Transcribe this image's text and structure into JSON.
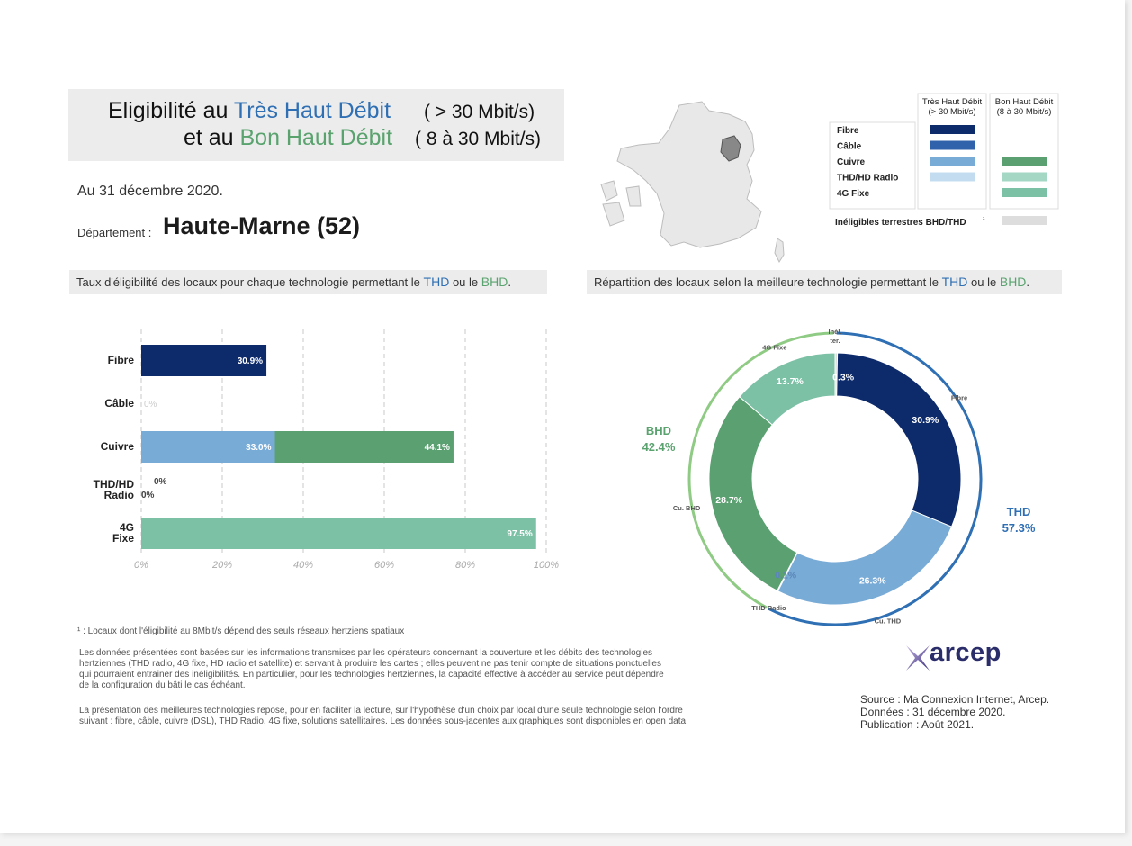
{
  "header": {
    "line1_prefix": "Eligibilité au",
    "line1_thd": "Très Haut Débit",
    "line1_range": "( > 30 Mbit/s)",
    "line2_prefix": "et au",
    "line2_bhd": "Bon Haut Débit",
    "line2_range": "( 8 à 30 Mbit/s)"
  },
  "date": "Au 31 décembre 2020.",
  "department": {
    "prefix": "Département :",
    "name": "Haute-Marne (52)"
  },
  "left_section": {
    "text": "Taux d'éligibilité des locaux pour chaque technologie permettant le",
    "thd": "THD",
    "middle": "ou le",
    "bhd": "BHD",
    "end": "."
  },
  "right_section": {
    "text": "Répartition des locaux selon la meilleure technologie permettant le",
    "thd": "THD",
    "middle": "ou le",
    "bhd": "BHD",
    "end": "."
  },
  "legend": {
    "col_thd": [
      "Très Haut Débit",
      "(> 30 Mbit/s)"
    ],
    "col_bhd": [
      "Bon Haut Débit",
      "(8 à 30 Mbit/s)"
    ],
    "rows": [
      {
        "label": "Fibre",
        "thd_color": "#0d2a6b",
        "bhd_color": null
      },
      {
        "label": "Câble",
        "thd_color": "#2f62aa",
        "bhd_color": null
      },
      {
        "label": "Cuivre",
        "thd_color": "#79abd7",
        "bhd_color": "#5aa070"
      },
      {
        "label": "THD/HD Radio",
        "thd_color": "#c4dcf0",
        "bhd_color": "#a5d7c5"
      },
      {
        "label": "4G Fixe",
        "thd_color": null,
        "bhd_color": "#7cc0a6"
      }
    ],
    "inelig_label": "Inéligibles terrestres BHD/THD",
    "inelig_sup": "¹",
    "inelig_color": "#dddddd"
  },
  "colors": {
    "fibre": "#0d2a6b",
    "cuivre_thd": "#79abd7",
    "cuivre_bhd": "#5aa070",
    "fixe4g": "#7cc0a6",
    "thd_ring": "#2f6fb4",
    "bhd_ring": "#8fcb84",
    "thd_text": "#2f6fb4",
    "bhd_text": "#5aa36f"
  },
  "chart_data": [
    {
      "type": "bar",
      "orientation": "horizontal",
      "stacked": true,
      "categories": [
        "Fibre",
        "Câble",
        "Cuivre",
        "THD/HD Radio",
        "4G Fixe"
      ],
      "series": [
        {
          "name": "THD",
          "values": [
            30.9,
            0,
            33.0,
            0,
            null
          ],
          "labels": [
            "30.9%",
            "0%",
            "33.0%",
            "0%",
            ""
          ]
        },
        {
          "name": "BHD",
          "values": [
            null,
            null,
            44.1,
            0,
            97.5
          ],
          "labels": [
            "",
            "",
            "44.1%",
            "0%",
            "97.5%"
          ]
        }
      ],
      "xlim": [
        0,
        100
      ],
      "xticks": [
        "0%",
        "20%",
        "40%",
        "60%",
        "80%",
        "100%"
      ],
      "grid": true
    },
    {
      "type": "pie",
      "donut": true,
      "slices": [
        {
          "label": "Inél. ter.",
          "value": 0.3,
          "text": "0.3%"
        },
        {
          "label": "Fibre",
          "value": 30.9,
          "text": "30.9%"
        },
        {
          "label": "Cu. THD",
          "value": 26.3,
          "text": "26.3%"
        },
        {
          "label": "THD Radio",
          "value": 0.1,
          "text": "0.1%"
        },
        {
          "label": "Cu. BHD",
          "value": 28.7,
          "text": "28.7%"
        },
        {
          "label": "4G Fixe",
          "value": 13.7,
          "text": "13.7%"
        }
      ],
      "groups": [
        {
          "name": "THD",
          "value": 57.3,
          "text": "57.3%"
        },
        {
          "name": "BHD",
          "value": 42.4,
          "text": "42.4%"
        }
      ]
    }
  ],
  "footnote": "¹ : Locaux dont l'éligibilité au 8Mbit/s dépend des seuls réseaux hertziens spatiaux",
  "note_1": [
    "Les données présentées sont basées sur les informations transmises par les opérateurs concernant la couverture et les débits des technologies",
    "hertziennes (THD radio, 4G fixe, HD radio et satellite) et servant à produire les cartes ; elles peuvent ne pas tenir compte de situations ponctuelles",
    "qui pourraient entrainer des inéligibilités. En particulier, pour les technologies hertziennes, la capacité effective à accéder au service peut dépendre",
    "de la configuration du bâti le cas échéant."
  ],
  "note_2": [
    "La présentation des meilleures technologies repose, pour en faciliter la lecture, sur l'hypothèse d'un choix par local d'une seule technologie selon l'ordre",
    "suivant : fibre, câble, cuivre (DSL), THD Radio, 4G fixe, solutions satellitaires. Les données sous-jacentes aux graphiques sont disponibles en open data."
  ],
  "source": [
    "Source : Ma Connexion Internet, Arcep.",
    "Données : 31 décembre 2020.",
    "Publication : Août 2021."
  ],
  "logo_text": "arcep"
}
